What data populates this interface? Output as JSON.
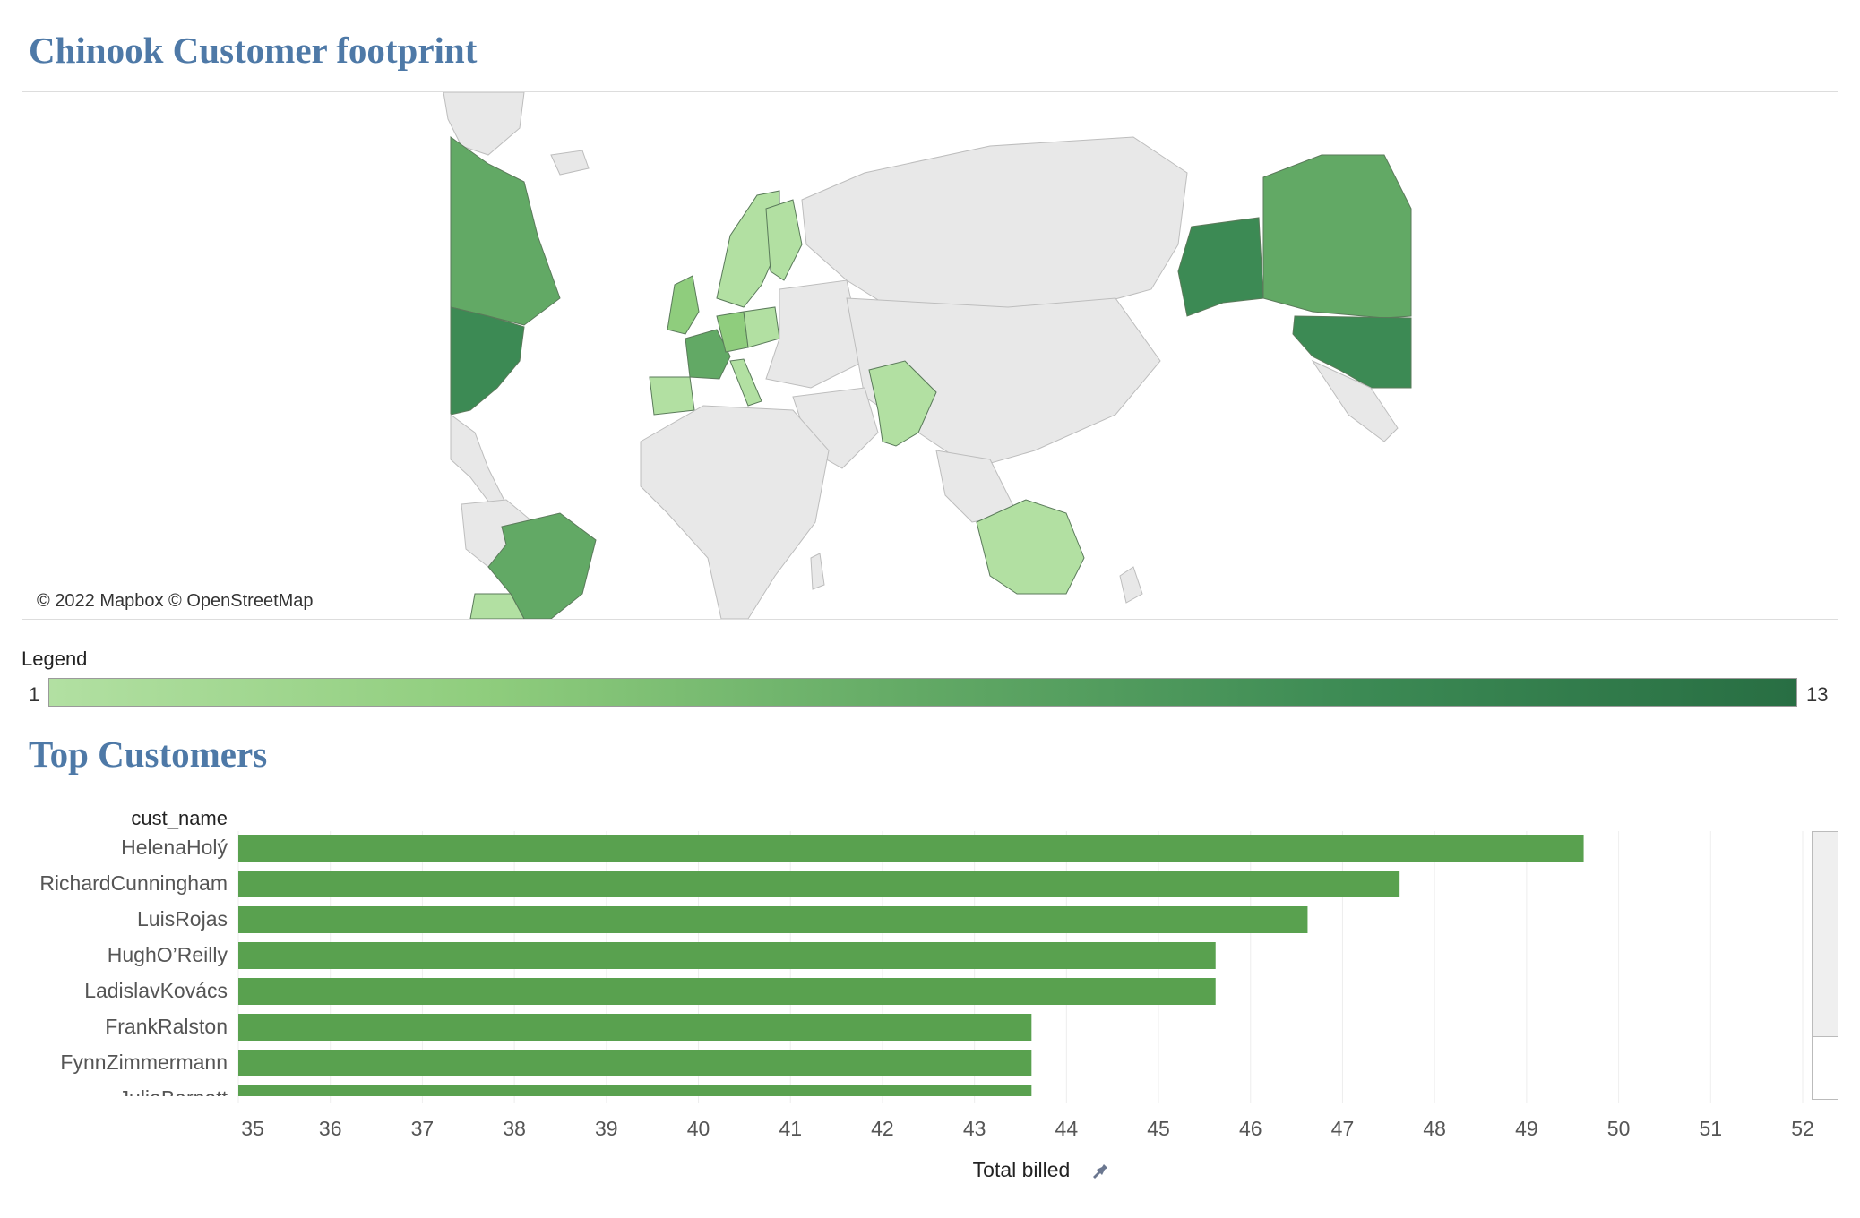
{
  "dashboard": {
    "map_title": "Chinook Customer footprint",
    "bar_title": "Top Customers"
  },
  "map": {
    "credit": "© 2022 Mapbox © OpenStreetMap",
    "colors": {
      "ocean": "#ffffff",
      "land": "#e8e8e8",
      "land_border": "#bdbdbd",
      "country_border": "#5a7a5a"
    }
  },
  "legend": {
    "title": "Legend",
    "min": "1",
    "max": "13",
    "colors": [
      "#b2e0a2",
      "#8fcd7d",
      "#62a965",
      "#3c8a54",
      "#286e43"
    ]
  },
  "chart_data": {
    "type": "bar",
    "orientation": "horizontal",
    "title": "Top Customers",
    "ylabel": "cust_name",
    "xlabel": "Total billed",
    "xlim": [
      35,
      52
    ],
    "xticks": [
      "35",
      "36",
      "37",
      "38",
      "39",
      "40",
      "41",
      "42",
      "43",
      "44",
      "45",
      "46",
      "47",
      "48",
      "49",
      "50",
      "51",
      "52"
    ],
    "bar_color": "#59a14f",
    "categories": [
      "HelenaHolý",
      "RichardCunningham",
      "LuisRojas",
      "HughO’Reilly",
      "LadislavKovács",
      "FrankRalston",
      "FynnZimmermann",
      "JuliaBarnett"
    ],
    "values": [
      49.62,
      47.62,
      46.62,
      45.62,
      45.62,
      43.62,
      43.62,
      43.62
    ],
    "grid": "vertical"
  }
}
